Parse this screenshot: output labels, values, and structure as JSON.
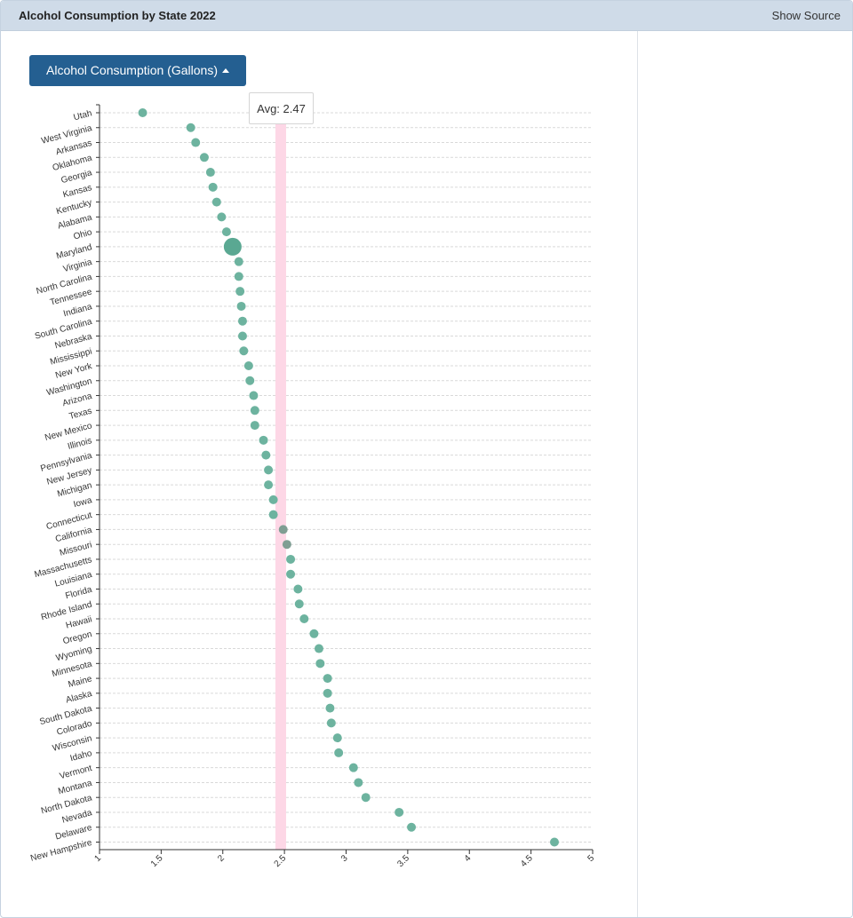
{
  "header": {
    "title": "Alcohol Consumption by State 2022",
    "show_source_label": "Show Source"
  },
  "controls": {
    "metric_button_label": "Alcohol Consumption (Gallons)"
  },
  "average": {
    "label": "Avg: 2.47",
    "value": 2.47
  },
  "colors": {
    "dot": "#6db39f",
    "dot_highlight": "#5aa892",
    "dot_in_band": "#7f9e93",
    "avg_band": "#fdd7e6",
    "grid": "#d9d9d9",
    "button": "#245f91",
    "header_bg": "#cfdbe8"
  },
  "chart_data": {
    "type": "scatter",
    "orientation": "horizontal-dot-plot",
    "title": "Alcohol Consumption by State 2022",
    "xlabel": "",
    "ylabel": "",
    "xlim": [
      1,
      5
    ],
    "x_ticks": [
      "1",
      "1.5",
      "2",
      "2.5",
      "3",
      "3.5",
      "4",
      "4.5",
      "5"
    ],
    "grid": "horizontal dashed",
    "highlighted_state": "Maryland",
    "categories": [
      "Utah",
      "West Virginia",
      "Arkansas",
      "Oklahoma",
      "Georgia",
      "Kansas",
      "Kentucky",
      "Alabama",
      "Ohio",
      "Maryland",
      "Virginia",
      "North Carolina",
      "Tennessee",
      "Indiana",
      "South Carolina",
      "Nebraska",
      "Mississippi",
      "New York",
      "Washington",
      "Arizona",
      "Texas",
      "New Mexico",
      "Illinois",
      "Pennsylvania",
      "New Jersey",
      "Michigan",
      "Iowa",
      "Connecticut",
      "California",
      "Missouri",
      "Massachusetts",
      "Louisiana",
      "Florida",
      "Rhode Island",
      "Hawaii",
      "Oregon",
      "Wyoming",
      "Minnesota",
      "Maine",
      "Alaska",
      "South Dakota",
      "Colorado",
      "Wisconsin",
      "Idaho",
      "Vermont",
      "Montana",
      "North Dakota",
      "Nevada",
      "Delaware",
      "New Hampshire"
    ],
    "values": [
      1.35,
      1.74,
      1.78,
      1.85,
      1.9,
      1.92,
      1.95,
      1.99,
      2.03,
      2.08,
      2.13,
      2.13,
      2.14,
      2.15,
      2.16,
      2.16,
      2.17,
      2.21,
      2.22,
      2.25,
      2.26,
      2.26,
      2.33,
      2.35,
      2.37,
      2.37,
      2.41,
      2.41,
      2.49,
      2.52,
      2.55,
      2.55,
      2.61,
      2.62,
      2.66,
      2.74,
      2.78,
      2.79,
      2.85,
      2.85,
      2.87,
      2.88,
      2.93,
      2.94,
      3.06,
      3.1,
      3.16,
      3.43,
      3.53,
      4.69
    ]
  }
}
